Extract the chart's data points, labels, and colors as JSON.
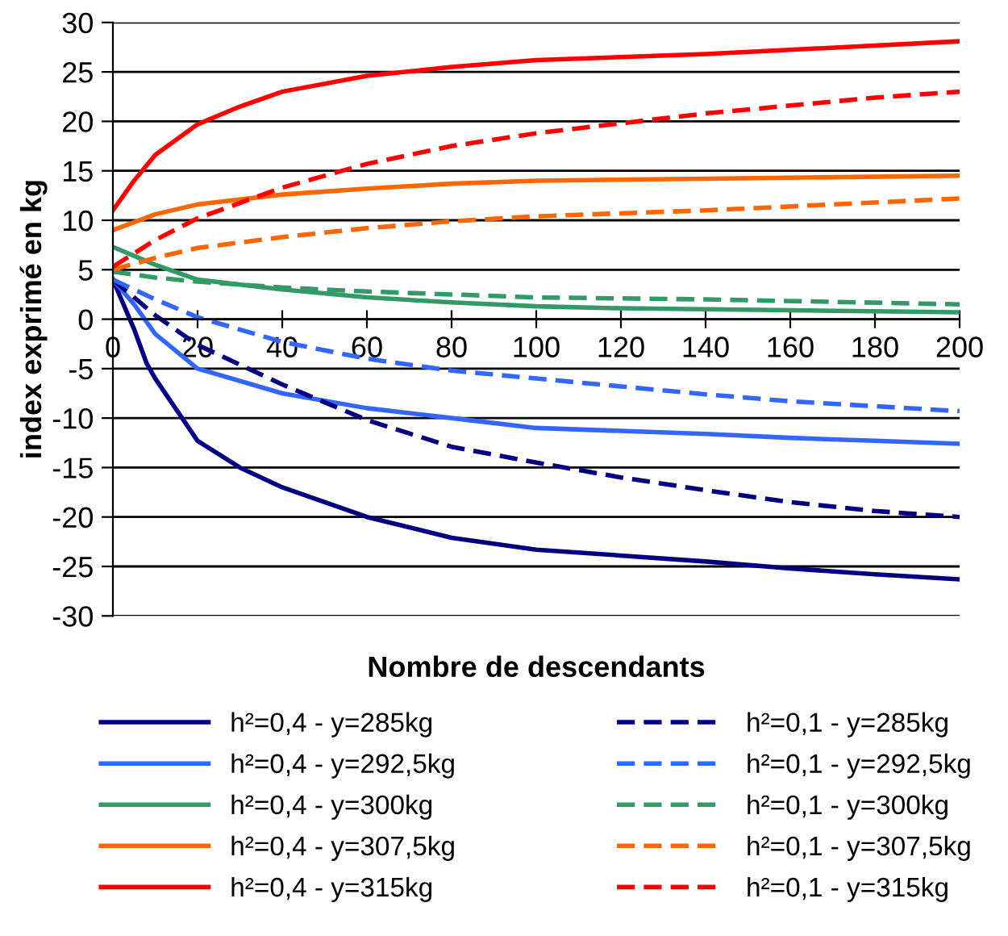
{
  "chart_data": {
    "type": "line",
    "xlabel": "Nombre de descendants",
    "ylabel": "index exprimé en kg",
    "xlim": [
      0,
      200
    ],
    "xticks": [
      0,
      20,
      40,
      60,
      80,
      100,
      120,
      140,
      160,
      180,
      200
    ],
    "ylim": [
      -30,
      30
    ],
    "yticks": [
      -30,
      -25,
      -20,
      -15,
      -10,
      -5,
      0,
      5,
      10,
      15,
      20,
      25,
      30
    ],
    "grid": "y",
    "legend": "bottom",
    "marker": "none",
    "series": [
      {
        "name": "h²=0,4 - y=285kg",
        "color": "#000080",
        "line_style": "solid",
        "x": [
          0,
          5,
          8,
          10,
          20,
          30,
          40,
          60,
          80,
          100,
          140,
          160,
          180,
          200
        ],
        "values": [
          4,
          -1,
          -4.5,
          -6,
          -12.3,
          -15,
          -17,
          -20,
          -22.1,
          -23.3,
          -24.5,
          -25.2,
          -25.8,
          -26.3
        ]
      },
      {
        "name": "h²=0,4 - y=292,5kg",
        "color": "#3366ff",
        "line_style": "solid",
        "x": [
          0,
          5,
          10,
          20,
          40,
          60,
          80,
          100,
          120,
          140,
          160,
          180,
          200
        ],
        "values": [
          4,
          1.5,
          -1.5,
          -5,
          -7.5,
          -9,
          -10,
          -11,
          -11.3,
          -11.6,
          -12,
          -12.3,
          -12.6
        ]
      },
      {
        "name": "h²=0,4 - y=300kg",
        "color": "#339966",
        "line_style": "solid",
        "x": [
          0,
          10,
          20,
          40,
          60,
          80,
          100,
          120,
          160,
          200
        ],
        "values": [
          7.3,
          5.5,
          4,
          3,
          2.2,
          1.7,
          1.3,
          1.1,
          0.9,
          0.7
        ]
      },
      {
        "name": "h²=0,4 - y=307,5kg",
        "color": "#ff6600",
        "line_style": "solid",
        "x": [
          0,
          10,
          20,
          40,
          60,
          80,
          100,
          140,
          200
        ],
        "values": [
          9,
          10.6,
          11.6,
          12.6,
          13.2,
          13.7,
          14,
          14.2,
          14.5
        ]
      },
      {
        "name": "h²=0,4 - y=315kg",
        "color": "#ff0000",
        "line_style": "solid",
        "x": [
          0,
          5,
          10,
          20,
          30,
          40,
          60,
          80,
          100,
          140,
          200
        ],
        "values": [
          11,
          14,
          16.6,
          19.7,
          21.5,
          23,
          24.6,
          25.5,
          26.2,
          26.8,
          28.1
        ]
      },
      {
        "name": "h²=0,1 - y=285kg",
        "color": "#000080",
        "line_style": "dashed",
        "x": [
          0,
          10,
          20,
          40,
          60,
          80,
          100,
          120,
          140,
          160,
          180,
          200
        ],
        "values": [
          4,
          0.4,
          -2.6,
          -6.6,
          -10.2,
          -12.9,
          -14.5,
          -16,
          -17.3,
          -18.5,
          -19.4,
          -20
        ]
      },
      {
        "name": "h²=0,1 - y=292,5kg",
        "color": "#3366ff",
        "line_style": "dashed",
        "x": [
          0,
          10,
          20,
          40,
          60,
          80,
          100,
          120,
          140,
          160,
          180,
          200
        ],
        "values": [
          4,
          2,
          0.2,
          -2.3,
          -4,
          -5.2,
          -6,
          -6.8,
          -7.6,
          -8.3,
          -8.8,
          -9.3
        ]
      },
      {
        "name": "h²=0,1 - y=300kg",
        "color": "#339966",
        "line_style": "dashed",
        "x": [
          0,
          10,
          20,
          40,
          60,
          80,
          100,
          140,
          200
        ],
        "values": [
          4.8,
          4.2,
          3.8,
          3.2,
          2.8,
          2.5,
          2.2,
          2,
          1.5
        ]
      },
      {
        "name": "h²=0,1 - y=307,5kg",
        "color": "#ff6600",
        "line_style": "dashed",
        "x": [
          0,
          10,
          20,
          40,
          60,
          80,
          100,
          140,
          200
        ],
        "values": [
          5,
          6.2,
          7.2,
          8.3,
          9.2,
          9.9,
          10.4,
          11,
          12.2
        ]
      },
      {
        "name": "h²=0,1 - y=315kg",
        "color": "#ff0000",
        "line_style": "dashed",
        "x": [
          0,
          10,
          20,
          40,
          60,
          80,
          100,
          120,
          140,
          160,
          180,
          200
        ],
        "values": [
          5.3,
          8,
          10.2,
          13.3,
          15.7,
          17.5,
          18.8,
          19.8,
          20.8,
          21.6,
          22.4,
          23
        ]
      }
    ]
  }
}
